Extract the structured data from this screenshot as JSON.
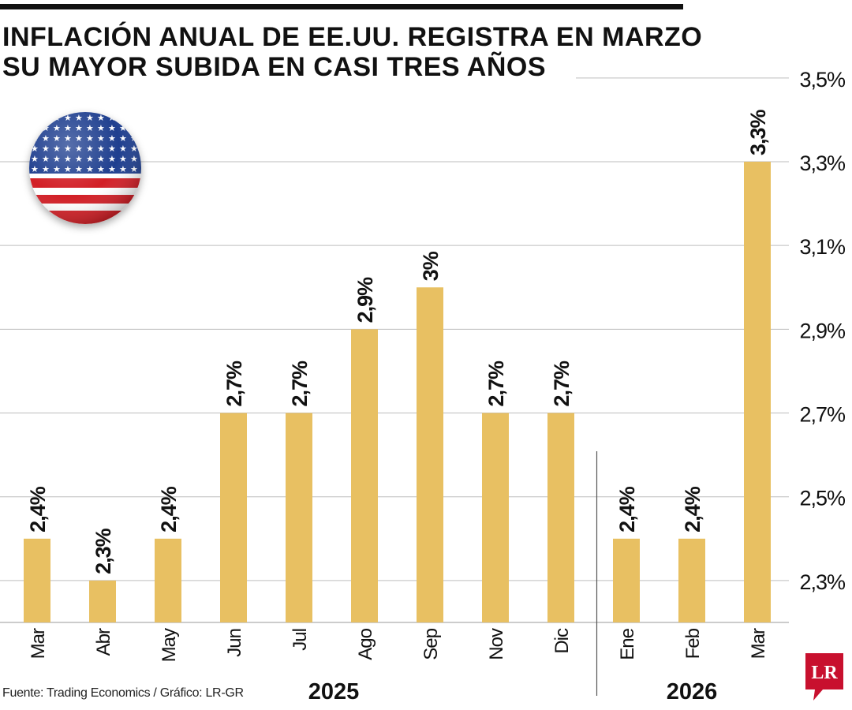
{
  "title": {
    "line1": "INFLACIÓN ANUAL DE EE.UU. REGISTRA EN MARZO",
    "line2": "SU MAYOR SUBIDA EN CASI TRES AÑOS"
  },
  "source": "Fuente: Trading Economics / Gráfico: LR-GR",
  "logo_text": "LR",
  "colors": {
    "bar": "#E8C062",
    "grid": "#bdbdbd",
    "logo": "#C8102E",
    "text": "#111111"
  },
  "chart_data": {
    "type": "bar",
    "title": "INFLACIÓN ANUAL DE EE.UU. REGISTRA EN MARZO SU MAYOR SUBIDA EN CASI TRES AÑOS",
    "categories": [
      "Mar",
      "Abr",
      "May",
      "Jun",
      "Jul",
      "Ago",
      "Sep",
      "Nov",
      "Dic",
      "Ene",
      "Feb",
      "Mar"
    ],
    "values": [
      2.4,
      2.3,
      2.4,
      2.7,
      2.7,
      2.9,
      3.0,
      2.7,
      2.7,
      2.4,
      2.4,
      3.3
    ],
    "value_labels": [
      "2,4%",
      "2,3%",
      "2,4%",
      "2,7%",
      "2,7%",
      "2,9%",
      "3%",
      "2,7%",
      "2,7%",
      "2,4%",
      "2,4%",
      "3,3%"
    ],
    "groups": [
      {
        "label": "2025",
        "start": 0,
        "end": 8
      },
      {
        "label": "2026",
        "start": 9,
        "end": 11
      }
    ],
    "yticks": [
      2.3,
      2.5,
      2.7,
      2.9,
      3.1,
      3.3,
      3.5
    ],
    "ytick_labels": [
      "2,3%",
      "2,5%",
      "2,7%",
      "2,9%",
      "3,1%",
      "3,3%",
      "3,5%"
    ],
    "ylim": [
      2.2,
      3.5
    ],
    "xlabel": "",
    "ylabel": "",
    "grid": true,
    "legend": "none"
  }
}
